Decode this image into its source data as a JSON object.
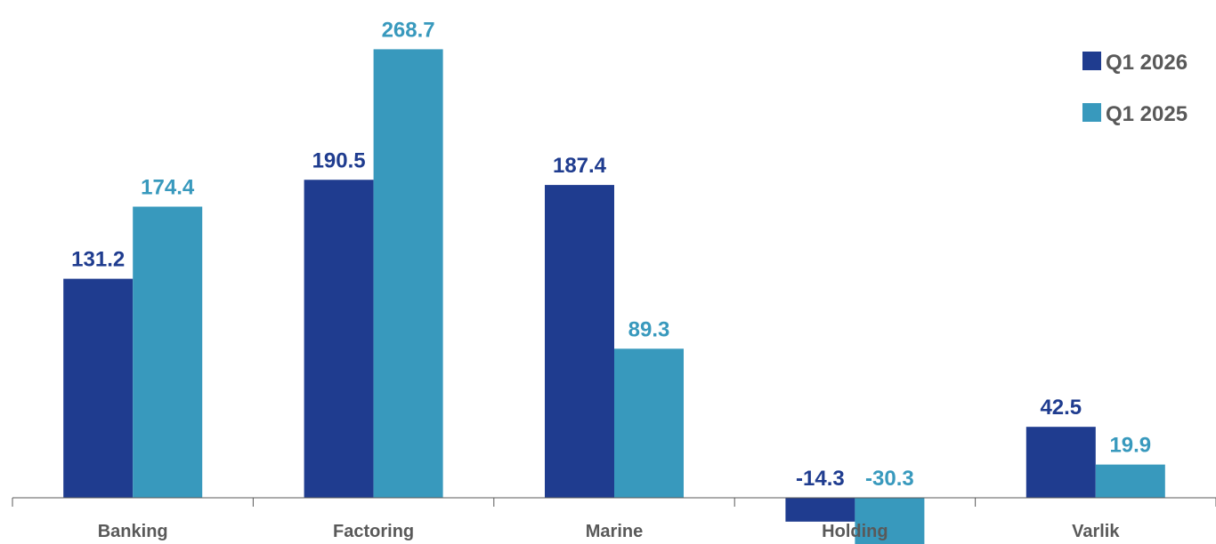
{
  "chart_data": {
    "type": "bar",
    "title": "",
    "xlabel": "",
    "ylabel": "",
    "categories": [
      "Banking",
      "Factoring",
      "Marine",
      "Holding",
      "Varlik"
    ],
    "series": [
      {
        "name": "Q1 2026",
        "color": "#1f3c8f",
        "values": [
          131.2,
          190.5,
          187.4,
          -14.3,
          42.5
        ],
        "labels": [
          "131.2",
          "190.5",
          "187.4",
          "-14.3",
          "42.5"
        ]
      },
      {
        "name": "Q1 2025",
        "color": "#3899bd",
        "values": [
          174.4,
          268.7,
          89.3,
          -30.3,
          19.9
        ],
        "labels": [
          "174.4",
          "268.7",
          "89.3",
          "-30.3",
          "19.9"
        ]
      }
    ],
    "ylim": [
      -30.3,
      268.7
    ],
    "grid": false,
    "legend": "top-right",
    "axis_color": "#595959"
  }
}
